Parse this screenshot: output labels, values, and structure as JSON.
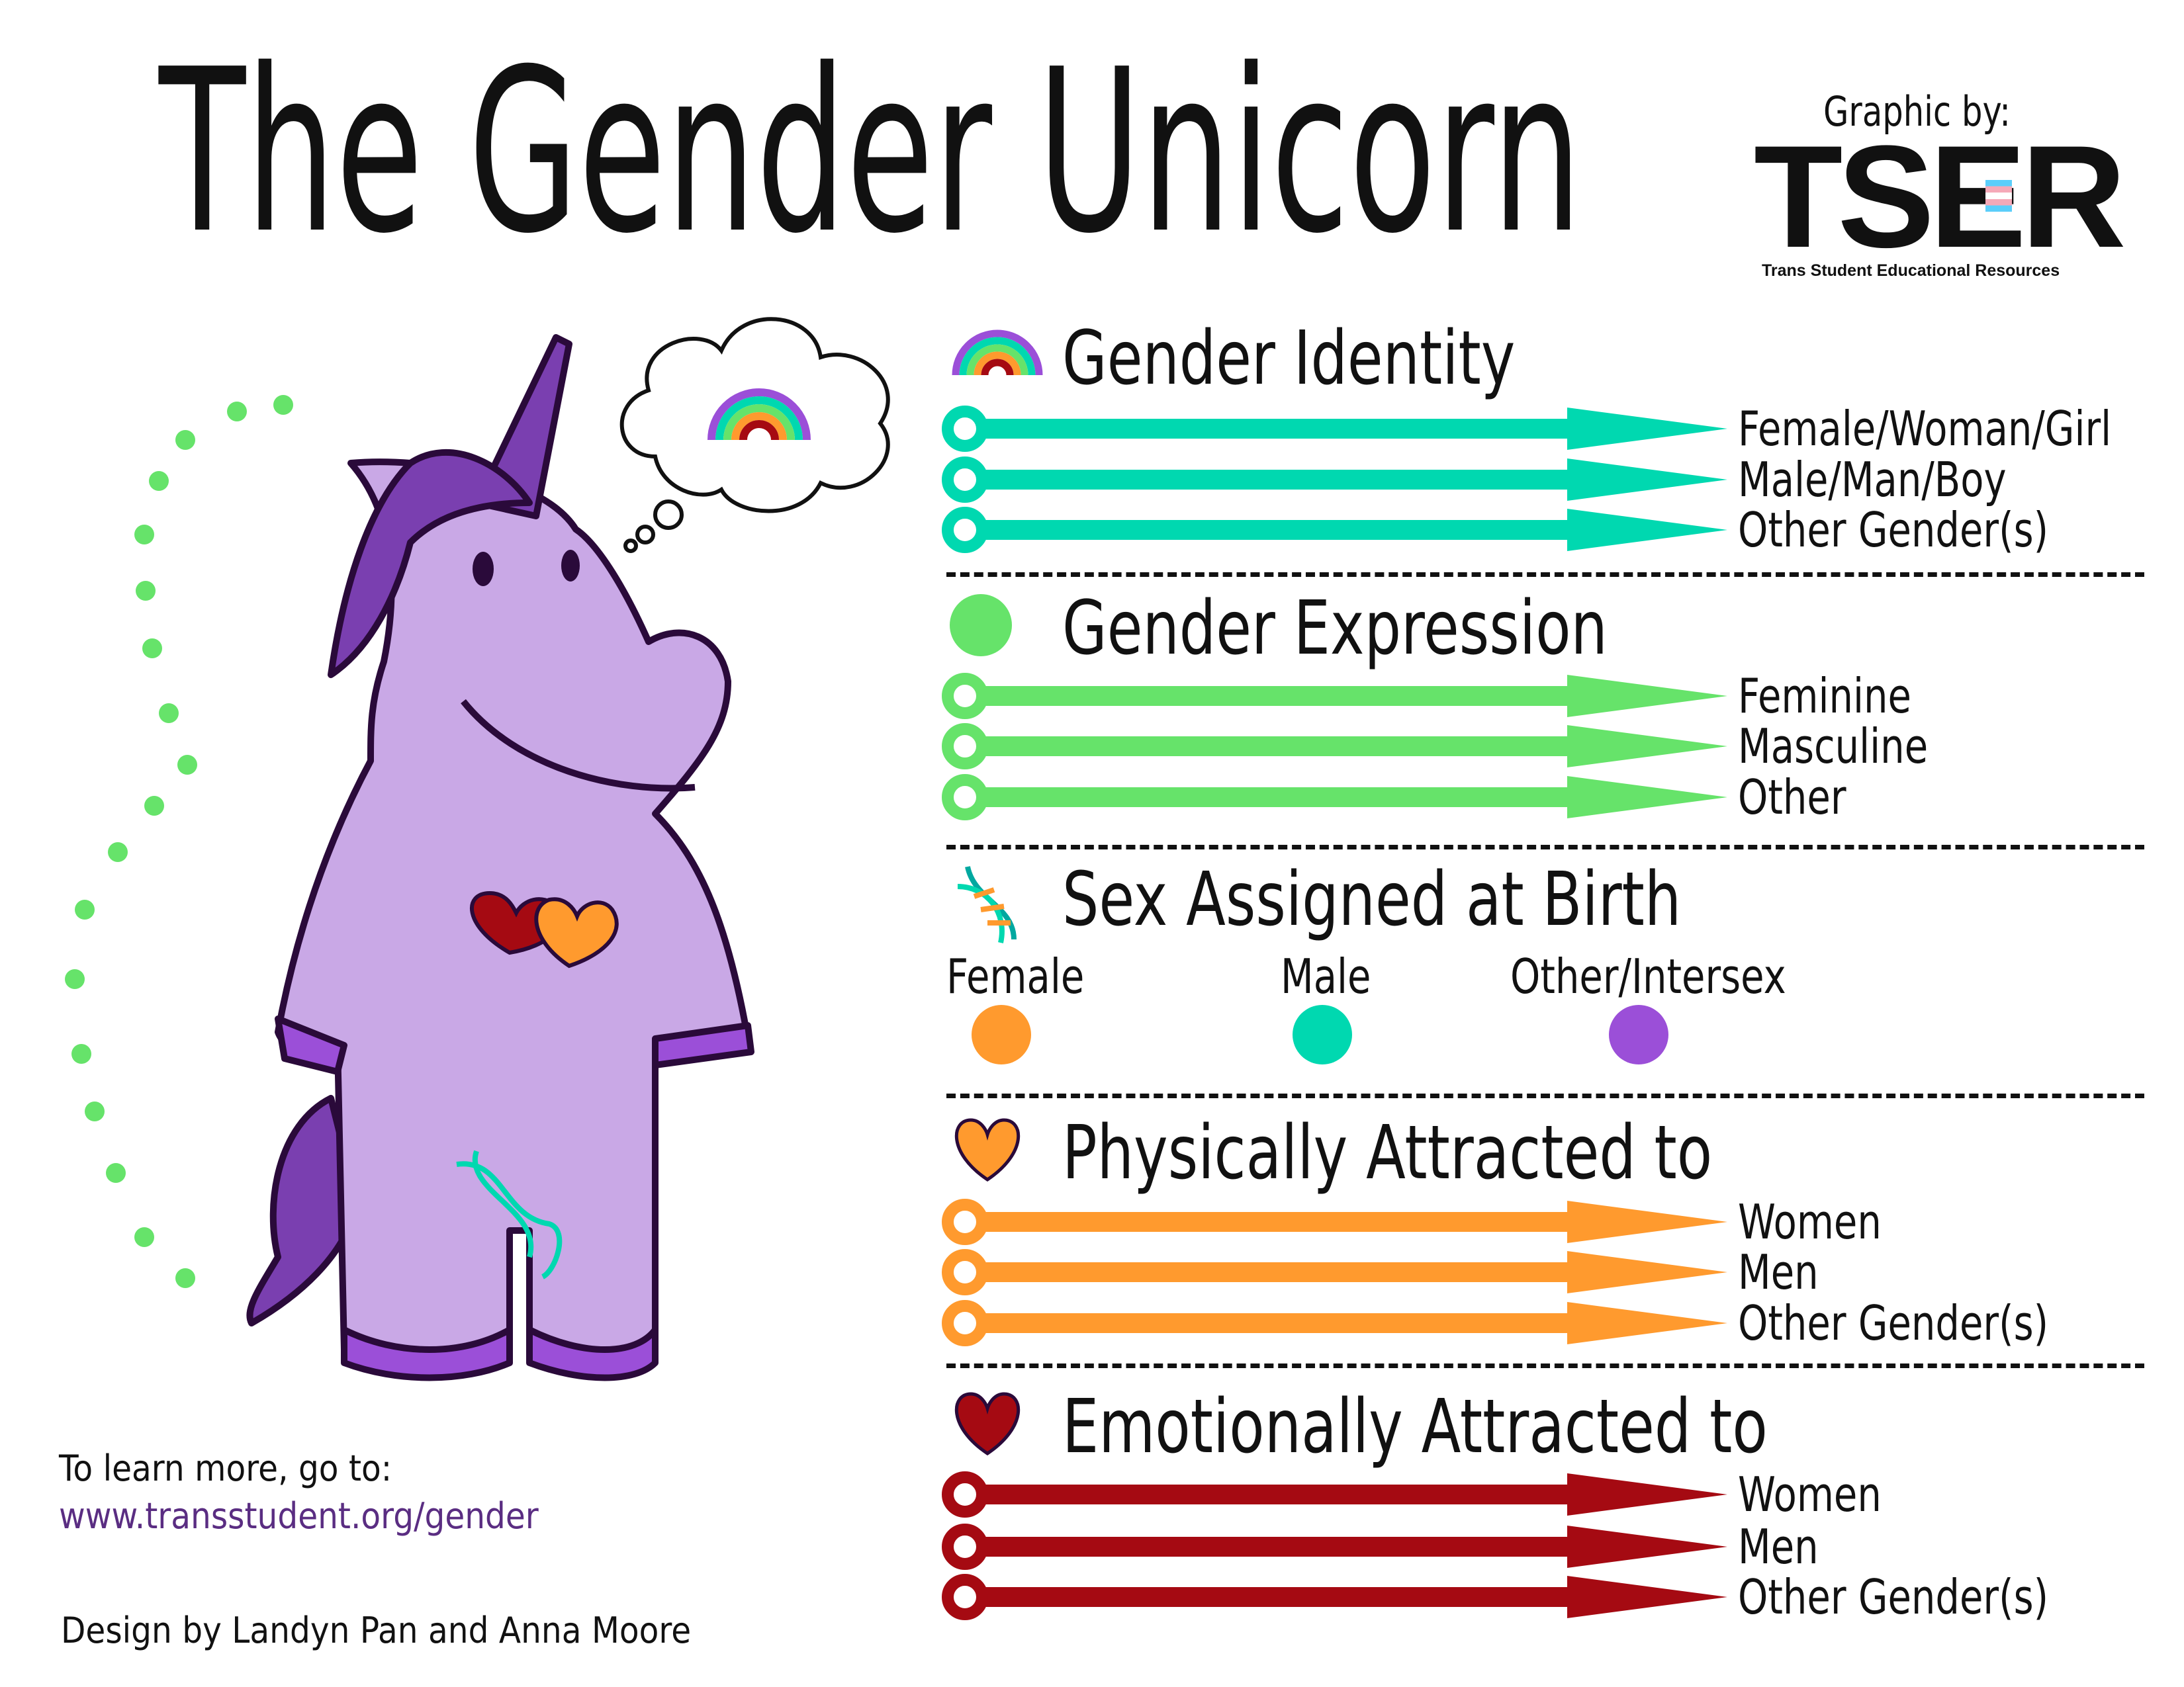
{
  "header": {
    "title": "The Gender Unicorn",
    "graphic_by": "Graphic by:",
    "logo_text": "TSER",
    "logo_subtitle": "Trans Student Educational Resources"
  },
  "colors": {
    "gender_identity": "#00d8b0",
    "gender_expression": "#66e36a",
    "physically_attracted": "#ff9a2e",
    "emotionally_attracted": "#a50a12",
    "intersex": "#9b4fd8",
    "unicorn_body": "#c9a8e6",
    "outline": "#2a0a3a"
  },
  "sections": [
    {
      "title": "Gender Identity",
      "icon": "rainbow-icon",
      "color": "#00d8b0",
      "items": [
        "Female/Woman/Girl",
        "Male/Man/Boy",
        "Other Gender(s)"
      ]
    },
    {
      "title": "Gender Expression",
      "icon": "circle-icon",
      "color": "#66e36a",
      "items": [
        "Feminine",
        "Masculine",
        "Other"
      ]
    },
    {
      "title": "Sex Assigned at Birth",
      "icon": "dna-icon",
      "options": [
        {
          "label": "Female",
          "color": "#ff9a2e"
        },
        {
          "label": "Male",
          "color": "#00d8b0"
        },
        {
          "label": "Other/Intersex",
          "color": "#9b4fd8"
        }
      ]
    },
    {
      "title": "Physically Attracted to",
      "icon": "orange-heart-icon",
      "color": "#ff9a2e",
      "items": [
        "Women",
        "Men",
        "Other Gender(s)"
      ]
    },
    {
      "title": "Emotionally Attracted to",
      "icon": "red-heart-icon",
      "color": "#a50a12",
      "items": [
        "Women",
        "Men",
        "Other Gender(s)"
      ]
    }
  ],
  "footer": {
    "learn_more": "To learn more, go to:",
    "url": "www.transstudent.org/gender",
    "credits": "Design by Landyn Pan and Anna Moore"
  }
}
